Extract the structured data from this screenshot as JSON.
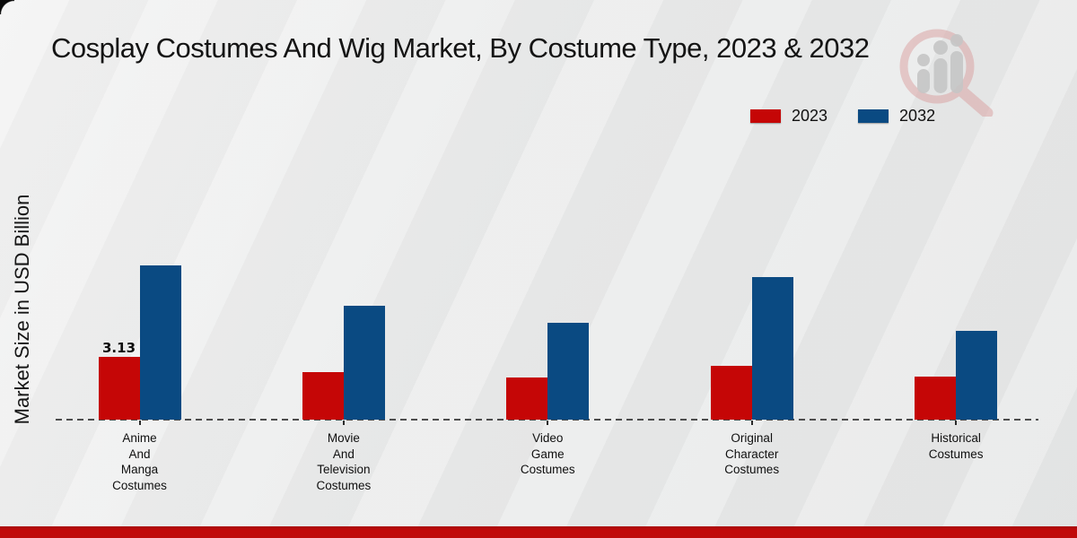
{
  "page": {
    "background_color": "#eaeaea",
    "bottom_bar_color": "#bf0a0a",
    "watermark_icon": "magnifier-with-bar-chart-logo"
  },
  "chart_data": {
    "type": "bar",
    "title": "Cosplay Costumes And Wig Market, By Costume Type, 2023 & 2032",
    "ylabel": "Market Size in USD Billion",
    "xlabel": "",
    "categories": [
      "Anime\nAnd\nManga\nCostumes",
      "Movie\nAnd\nTelevision\nCostumes",
      "Video\nGame\nCostumes",
      "Original\nCharacter\nCostumes",
      "Historical\nCostumes"
    ],
    "series": [
      {
        "name": "2023",
        "color": "#c50606",
        "values": [
          3.13,
          2.37,
          2.1,
          2.68,
          2.15
        ]
      },
      {
        "name": "2032",
        "color": "#0a4a82",
        "values": [
          7.69,
          5.68,
          4.83,
          7.11,
          4.43
        ]
      }
    ],
    "annotations": [
      {
        "series": "2023",
        "category_index": 0,
        "text": "3.13"
      }
    ],
    "legend_position": "top-right",
    "grid": false,
    "baseline_style": "dashed",
    "yaxis_ticks_visible": false,
    "ylim": [
      0,
      8.5
    ]
  }
}
